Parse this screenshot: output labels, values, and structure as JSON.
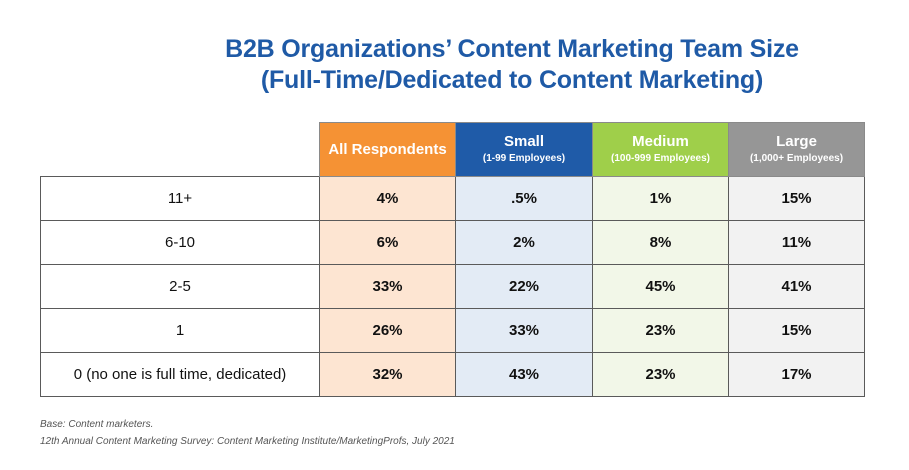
{
  "chart_data": {
    "type": "table",
    "title": "B2B Organizations’ Content Marketing Team Size",
    "subtitle": "(Full-Time/Dedicated to Content Marketing)",
    "columns": [
      {
        "name": "All Respondents",
        "sub": "",
        "color": "#f59234"
      },
      {
        "name": "Small",
        "sub": "(1-99 Employees)",
        "color": "#1f5ba8"
      },
      {
        "name": "Medium",
        "sub": "(100-999 Employees)",
        "color": "#9fcf4a"
      },
      {
        "name": "Large",
        "sub": "(1,000+ Employees)",
        "color": "#969696"
      }
    ],
    "rows": [
      {
        "label": "11+",
        "values": [
          "4%",
          ".5%",
          "1%",
          "15%"
        ]
      },
      {
        "label": "6-10",
        "values": [
          "6%",
          "2%",
          "8%",
          "11%"
        ]
      },
      {
        "label": "2-5",
        "values": [
          "33%",
          "22%",
          "45%",
          "41%"
        ]
      },
      {
        "label": "1",
        "values": [
          "26%",
          "33%",
          "23%",
          "15%"
        ]
      },
      {
        "label": "0 (no one is full time, dedicated)",
        "values": [
          "32%",
          "43%",
          "23%",
          "17%"
        ]
      }
    ]
  },
  "notes": {
    "base": "Base: Content marketers.",
    "source": "12th Annual Content Marketing Survey: Content Marketing Institute/MarketingProfs, July 2021"
  }
}
